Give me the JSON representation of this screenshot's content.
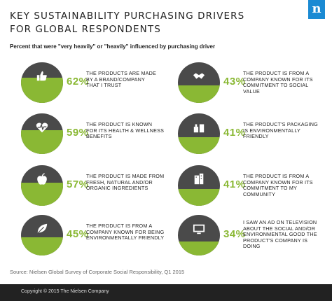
{
  "title_lines": [
    "KEY SUSTAINABILITY PURCHASING DRIVERS",
    "FOR GLOBAL RESPONDENTS"
  ],
  "subtitle": "Percent that were \"very heavily\" or \"heavily\" influenced by purchasing driver",
  "logo_letter": "n",
  "colors": {
    "green": "#8ab834",
    "dark": "#4a4a4a",
    "brand_blue": "#1a8ad3",
    "footer": "#222222"
  },
  "drivers": [
    {
      "percent": 62,
      "percent_label": "62%",
      "icon": "thumbs-up-icon",
      "lines": [
        "THE PRODUCTS ARE MADE",
        "BY A BRAND/COMPANY",
        "THAT I TRUST"
      ]
    },
    {
      "percent": 43,
      "percent_label": "43%",
      "icon": "handshake-icon",
      "lines": [
        "THE PRODUCT IS FROM A",
        "COMPANY KNOWN FOR ITS",
        "COMMITMENT TO SOCIAL VALUE"
      ]
    },
    {
      "percent": 59,
      "percent_label": "59%",
      "icon": "heartbeat-icon",
      "lines": [
        "THE PRODUCT IS KNOWN",
        "FOR ITS HEALTH & WELLNESS",
        "BENEFITS"
      ]
    },
    {
      "percent": 41,
      "percent_label": "41%",
      "icon": "packaging-icon",
      "lines": [
        "THE PRODUCT'S PACKAGING",
        "IS ENVIRONMENTALLY",
        "FRIENDLY"
      ]
    },
    {
      "percent": 57,
      "percent_label": "57%",
      "icon": "apple-icon",
      "lines": [
        "THE PRODUCT IS MADE FROM",
        "FRESH, NATURAL AND/OR",
        "ORGANIC INGREDIENTS"
      ]
    },
    {
      "percent": 41,
      "percent_label": "41%",
      "icon": "buildings-icon",
      "lines": [
        "THE PRODUCT IS FROM A",
        "COMPANY KNOWN FOR ITS",
        "COMMITMENT TO MY COMMUNITY"
      ]
    },
    {
      "percent": 45,
      "percent_label": "45%",
      "icon": "leaf-icon",
      "lines": [
        "THE PRODUCT IS FROM A",
        "COMPANY KNOWN FOR BEING",
        "ENVIRONMENTALLY FRIENDLY"
      ]
    },
    {
      "percent": 34,
      "percent_label": "34%",
      "icon": "television-icon",
      "lines": [
        "I SAW AN AD ON TELEVISION",
        "ABOUT THE SOCIAL AND/OR",
        "ENVIRONMENTAL GOOD THE",
        "PRODUCT'S COMPANY IS DOING"
      ]
    }
  ],
  "source": "Source: Nielsen Global Survey of Corporate Social Responsibility, Q1 2015",
  "copyright": "Copyright © 2015 The Nielsen Company"
}
